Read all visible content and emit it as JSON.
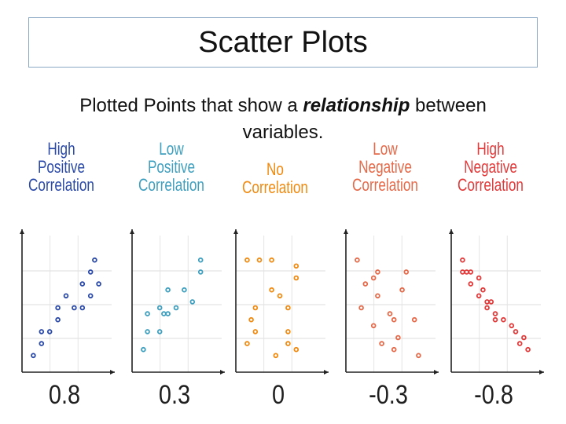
{
  "slide": {
    "title": "Scatter Plots",
    "subtitle_before": "Plotted Points that show a ",
    "subtitle_emphasis": "relationship",
    "subtitle_after": " between variables."
  },
  "colors": {
    "High Positive": "#2b4aa8",
    "Low Positive": "#3f9fbf",
    "No": "#f08a10",
    "Low Negative": "#e56a4a",
    "High Negative": "#e23a3a"
  },
  "chart_data": [
    {
      "type": "scatter",
      "title_lines": [
        "High",
        "Positive",
        "Correlation"
      ],
      "correlation": "0.8",
      "x": [
        1,
        2,
        2,
        3,
        4,
        4,
        5,
        6,
        7,
        7,
        8,
        8,
        8.5,
        9
      ],
      "y": [
        1,
        2,
        3,
        3,
        4,
        5,
        6,
        5,
        5,
        7,
        6,
        8,
        9,
        7
      ]
    },
    {
      "type": "scatter",
      "title_lines": [
        "Low",
        "Positive",
        "Correlation"
      ],
      "correlation": "0.3",
      "x": [
        1,
        1.5,
        1.5,
        3,
        3,
        3.5,
        4,
        4,
        5,
        6,
        7,
        8,
        8
      ],
      "y": [
        1.5,
        3,
        4.5,
        3,
        5,
        4.5,
        4.5,
        6.5,
        5,
        6.5,
        5.5,
        8,
        9
      ]
    },
    {
      "type": "scatter",
      "title_lines": [
        "No",
        "Correlation"
      ],
      "correlation": "0",
      "x": [
        1,
        1,
        1.5,
        2,
        2,
        2.5,
        4,
        4,
        4.5,
        5,
        6,
        6,
        6,
        7,
        7,
        7
      ],
      "y": [
        2,
        9,
        4,
        5,
        3,
        9,
        6.5,
        9,
        1,
        6,
        2,
        3,
        5,
        1.5,
        8.5,
        7.5
      ]
    },
    {
      "type": "scatter",
      "title_lines": [
        "Low",
        "Negative",
        "Correlation"
      ],
      "correlation": "-0.3",
      "x": [
        1,
        1.5,
        2,
        3,
        3,
        3.5,
        3.5,
        4,
        5,
        5.5,
        5.5,
        6,
        6.5,
        7,
        8,
        8.5
      ],
      "y": [
        9,
        5,
        7,
        7.5,
        3.5,
        6,
        8,
        2,
        4.5,
        1.5,
        4,
        2.5,
        6.5,
        8,
        4,
        1
      ]
    },
    {
      "type": "scatter",
      "title_lines": [
        "High",
        "Negative",
        "Correlation"
      ],
      "correlation": "-0.8",
      "x": [
        1,
        1,
        1.5,
        2,
        2,
        3,
        3,
        3.5,
        4,
        4,
        4.5,
        5,
        5,
        6,
        7,
        7.5,
        8,
        8.5,
        9
      ],
      "y": [
        9,
        8,
        8,
        7,
        8,
        7.5,
        6,
        6.5,
        5.5,
        5,
        5.5,
        4,
        4.5,
        4,
        3.5,
        3,
        2,
        2.5,
        1.5
      ]
    }
  ]
}
